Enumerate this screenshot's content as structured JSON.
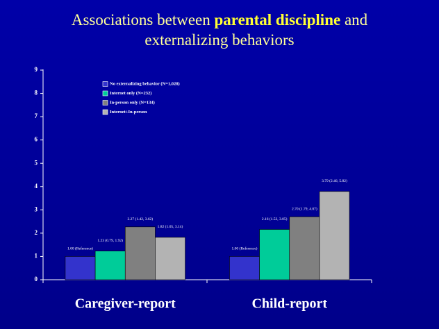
{
  "title_parts": [
    "Associations between ",
    "parental discipline",
    " and",
    "externalizing behaviors"
  ],
  "chart_data": {
    "type": "bar",
    "categories": [
      "Caregiver-report",
      "Child-report"
    ],
    "series": [
      {
        "name": "No externalizing behavior (N=1,028)",
        "color": "#3333cc",
        "values": [
          1.0,
          1.0
        ],
        "value_labels": [
          "1.00 (Reference)",
          "1.00 (Reference)"
        ]
      },
      {
        "name": "Internet only (N=232)",
        "color": "#00cc99",
        "values": [
          1.23,
          2.16
        ],
        "value_labels": [
          "1.23 (0.79, 1.92)",
          "2.16 (1.53, 3.05)"
        ]
      },
      {
        "name": "In-person only (N=134)",
        "color": "#808080",
        "values": [
          2.27,
          2.7
        ],
        "value_labels": [
          "2.27 (1.42, 3.62)",
          "2.70 (1.79, 4.07)"
        ]
      },
      {
        "name": "Internet+In-person",
        "color": "#b3b3b3",
        "values": [
          1.82,
          3.79
        ],
        "value_labels": [
          "1.82 (1.05, 3.14)",
          "3.79 (2.46, 5.82)"
        ]
      }
    ],
    "ylim": [
      0,
      9
    ],
    "yticks": [
      0,
      1,
      2,
      3,
      4,
      5,
      6,
      7,
      8,
      9
    ],
    "legend": "top-left"
  }
}
